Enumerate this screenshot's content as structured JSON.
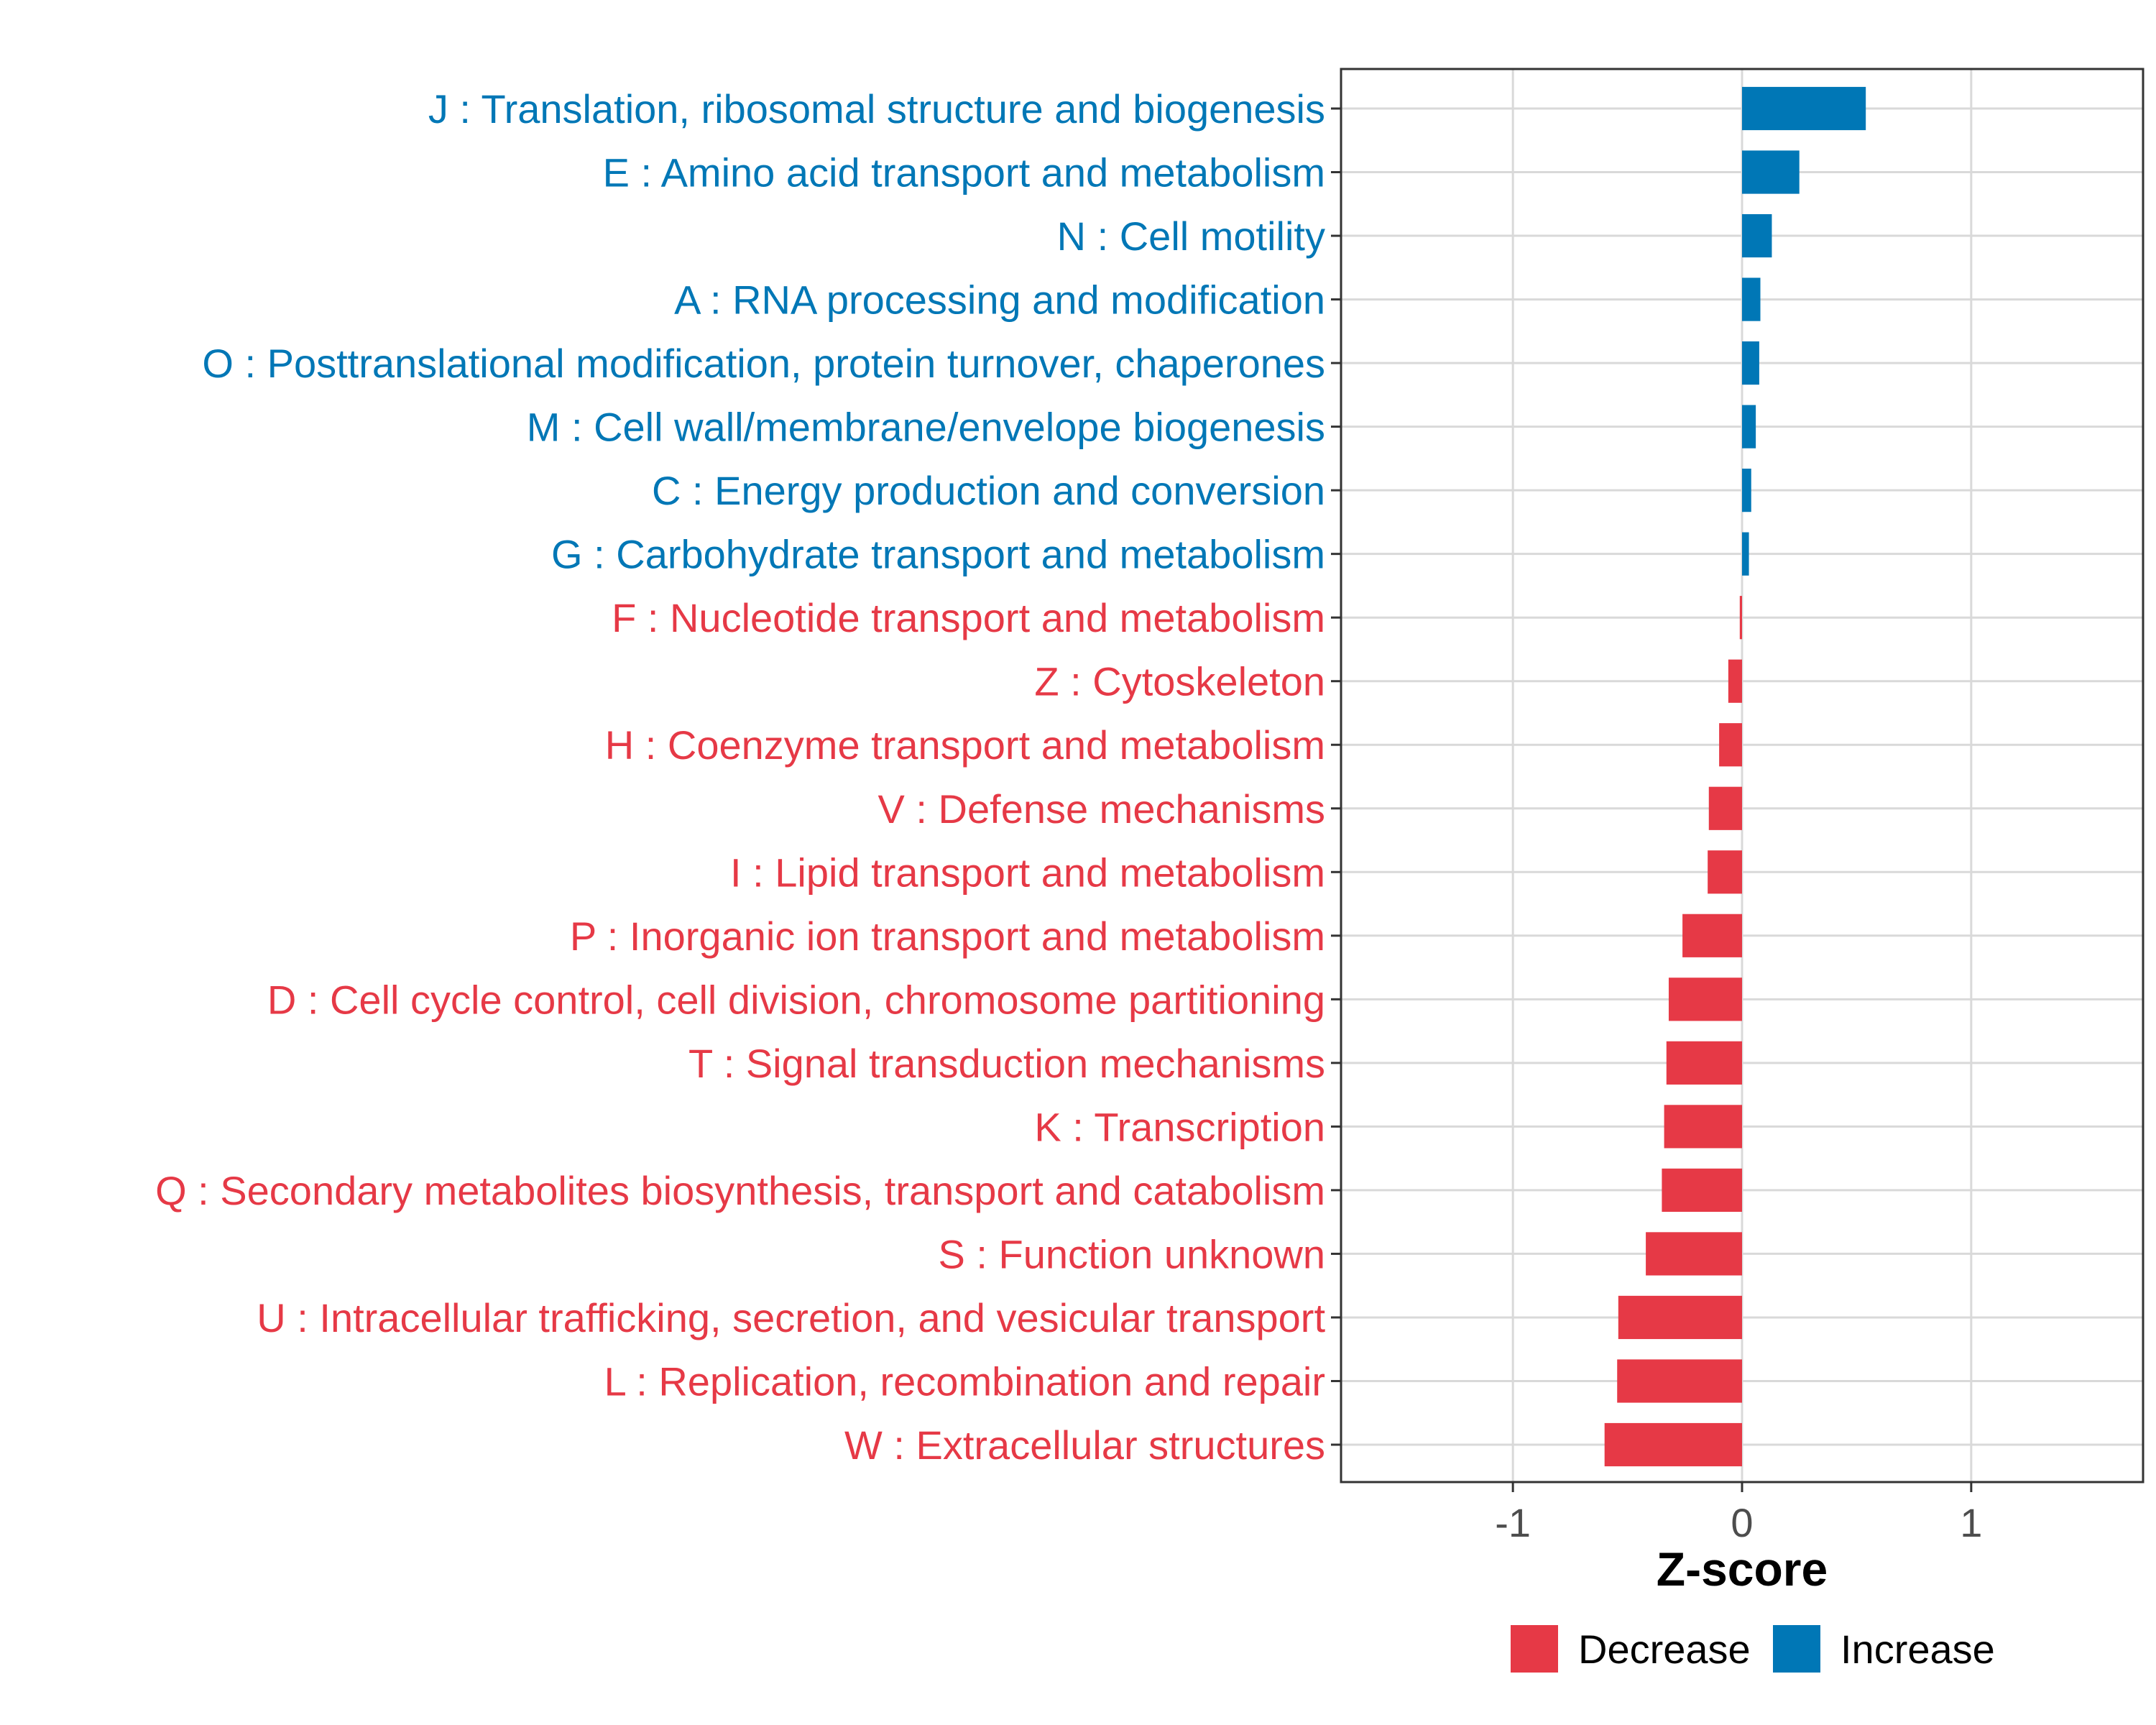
{
  "chart_data": {
    "type": "bar",
    "orientation": "horizontal",
    "title": "",
    "xlabel": "Z-score",
    "ylabel": "",
    "xlim": [
      -1.75,
      1.75
    ],
    "xticks": [
      -1,
      0,
      1
    ],
    "xtick_labels": [
      "-1",
      "0",
      "1"
    ],
    "grid": true,
    "legend_position": "bottom",
    "legend": [
      {
        "label": "Decrease",
        "color": "#E63946"
      },
      {
        "label": "Increase",
        "color": "#0077B6"
      }
    ],
    "colors": {
      "Increase": "#0077B6",
      "Decrease": "#E63946"
    },
    "categories": [
      "J : Translation, ribosomal structure and biogenesis",
      "E : Amino acid transport and metabolism",
      "N : Cell motility",
      "A : RNA processing and modification",
      "O : Posttranslational modification, protein turnover, chaperones",
      "M : Cell wall/membrane/envelope biogenesis",
      "C : Energy production and conversion",
      "G : Carbohydrate transport and metabolism",
      "F : Nucleotide transport and metabolism",
      "Z : Cytoskeleton",
      "H : Coenzyme transport and metabolism",
      "V : Defense mechanisms",
      "I : Lipid transport and metabolism",
      "P : Inorganic ion transport and metabolism",
      "D : Cell cycle control, cell division, chromosome partitioning",
      "T : Signal transduction mechanisms",
      "K : Transcription",
      "Q : Secondary metabolites biosynthesis, transport and catabolism",
      "S : Function unknown",
      "U : Intracellular trafficking, secretion, and vesicular transport",
      "L : Replication, recombination and repair",
      "W : Extracellular structures"
    ],
    "values": [
      0.54,
      0.25,
      0.13,
      0.08,
      0.075,
      0.06,
      0.04,
      0.03,
      -0.01,
      -0.06,
      -0.1,
      -0.145,
      -0.15,
      -0.26,
      -0.32,
      -0.33,
      -0.34,
      -0.35,
      -0.42,
      -0.54,
      -0.545,
      -0.6
    ],
    "direction": [
      "Increase",
      "Increase",
      "Increase",
      "Increase",
      "Increase",
      "Increase",
      "Increase",
      "Increase",
      "Decrease",
      "Decrease",
      "Decrease",
      "Decrease",
      "Decrease",
      "Decrease",
      "Decrease",
      "Decrease",
      "Decrease",
      "Decrease",
      "Decrease",
      "Decrease",
      "Decrease",
      "Decrease"
    ]
  }
}
